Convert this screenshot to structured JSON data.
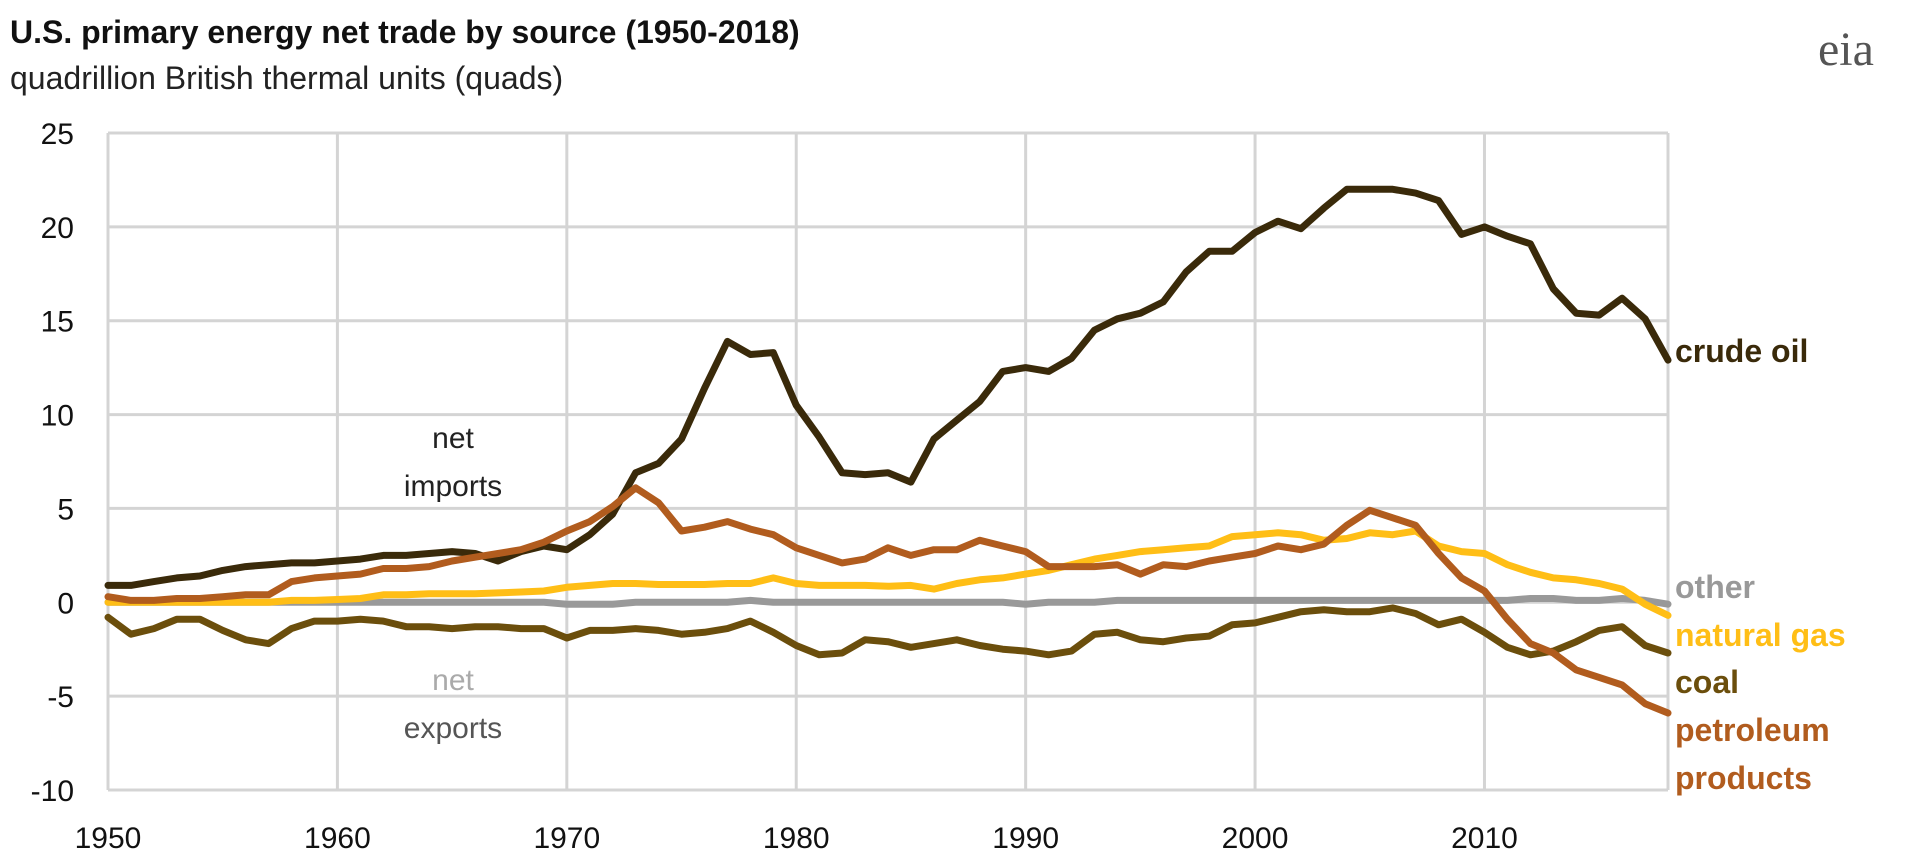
{
  "chart_data": {
    "type": "line",
    "title": "U.S. primary energy net trade by source (1950-2018)",
    "subtitle": "quadrillion British thermal units (quads)",
    "logo": "eia",
    "xlabel": "",
    "ylabel": "quadrillion British thermal units (quads)",
    "xlim": [
      1950,
      2018
    ],
    "ylim": [
      -10,
      25
    ],
    "x_ticks": [
      "1950",
      "1960",
      "1970",
      "1980",
      "1990",
      "2000",
      "2010"
    ],
    "y_ticks": [
      "25",
      "20",
      "15",
      "10",
      "5",
      "0",
      "-5",
      "-10"
    ],
    "grid": true,
    "annotations": {
      "net_imports": [
        "net",
        "imports"
      ],
      "net_exports": [
        "net",
        "exports"
      ]
    },
    "x_start": 1950,
    "series": [
      {
        "name": "crude oil",
        "color": "#3a2a0a",
        "values": [
          0.9,
          0.9,
          1.1,
          1.3,
          1.4,
          1.7,
          1.9,
          2.0,
          2.1,
          2.1,
          2.2,
          2.3,
          2.5,
          2.5,
          2.6,
          2.7,
          2.6,
          2.2,
          2.7,
          3.0,
          2.8,
          3.6,
          4.7,
          6.9,
          7.4,
          8.7,
          11.4,
          13.9,
          13.2,
          13.3,
          10.5,
          8.8,
          6.9,
          6.8,
          6.9,
          6.4,
          8.7,
          9.7,
          10.7,
          12.3,
          12.5,
          12.3,
          13.0,
          14.5,
          15.1,
          15.4,
          16.0,
          17.6,
          18.7,
          18.7,
          19.7,
          20.3,
          19.9,
          21.0,
          22.0,
          22.0,
          22.0,
          21.8,
          21.4,
          19.6,
          20.0,
          19.5,
          19.1,
          16.7,
          15.4,
          15.3,
          16.2,
          15.1,
          12.9
        ]
      },
      {
        "name": "other",
        "color": "#999999",
        "values": [
          0.0,
          0.0,
          0.0,
          0.0,
          0.0,
          0.0,
          0.0,
          0.0,
          0.0,
          0.0,
          0.0,
          0.0,
          0.0,
          0.0,
          0.0,
          0.0,
          0.0,
          0.0,
          0.0,
          0.0,
          -0.1,
          -0.1,
          -0.1,
          0.0,
          0.0,
          0.0,
          0.0,
          0.0,
          0.1,
          0.0,
          0.0,
          0.0,
          0.0,
          0.0,
          0.0,
          0.0,
          0.0,
          0.0,
          0.0,
          0.0,
          -0.1,
          0.0,
          0.0,
          0.0,
          0.1,
          0.1,
          0.1,
          0.1,
          0.1,
          0.1,
          0.1,
          0.1,
          0.1,
          0.1,
          0.1,
          0.1,
          0.1,
          0.1,
          0.1,
          0.1,
          0.1,
          0.1,
          0.2,
          0.2,
          0.1,
          0.1,
          0.2,
          0.1,
          -0.1
        ]
      },
      {
        "name": "natural gas",
        "color": "#ffbe16",
        "values": [
          0.0,
          0.0,
          0.0,
          0.0,
          0.0,
          0.0,
          0.0,
          0.0,
          0.1,
          0.1,
          0.15,
          0.2,
          0.4,
          0.4,
          0.45,
          0.45,
          0.45,
          0.5,
          0.55,
          0.6,
          0.8,
          0.9,
          1.0,
          1.0,
          0.95,
          0.95,
          0.95,
          1.0,
          1.0,
          1.3,
          1.0,
          0.9,
          0.9,
          0.9,
          0.85,
          0.9,
          0.7,
          1.0,
          1.2,
          1.3,
          1.5,
          1.7,
          2.0,
          2.3,
          2.5,
          2.7,
          2.8,
          2.9,
          3.0,
          3.5,
          3.6,
          3.7,
          3.6,
          3.3,
          3.4,
          3.7,
          3.6,
          3.8,
          3.0,
          2.7,
          2.6,
          2.0,
          1.6,
          1.3,
          1.2,
          1.0,
          0.7,
          -0.1,
          -0.7
        ]
      },
      {
        "name": "coal",
        "color": "#6b4e0c",
        "values": [
          -0.8,
          -1.7,
          -1.4,
          -0.9,
          -0.9,
          -1.5,
          -2.0,
          -2.2,
          -1.4,
          -1.0,
          -1.0,
          -0.9,
          -1.0,
          -1.3,
          -1.3,
          -1.4,
          -1.3,
          -1.3,
          -1.4,
          -1.4,
          -1.9,
          -1.5,
          -1.5,
          -1.4,
          -1.5,
          -1.7,
          -1.6,
          -1.4,
          -1.0,
          -1.6,
          -2.3,
          -2.8,
          -2.7,
          -2.0,
          -2.1,
          -2.4,
          -2.2,
          -2.0,
          -2.3,
          -2.5,
          -2.6,
          -2.8,
          -2.6,
          -1.7,
          -1.6,
          -2.0,
          -2.1,
          -1.9,
          -1.8,
          -1.2,
          -1.1,
          -0.8,
          -0.5,
          -0.4,
          -0.5,
          -0.5,
          -0.3,
          -0.6,
          -1.2,
          -0.9,
          -1.6,
          -2.4,
          -2.8,
          -2.6,
          -2.1,
          -1.5,
          -1.3,
          -2.3,
          -2.7
        ]
      },
      {
        "name": "petroleum products",
        "color": "#b15c1e",
        "values": [
          0.3,
          0.1,
          0.1,
          0.2,
          0.2,
          0.3,
          0.4,
          0.4,
          1.1,
          1.3,
          1.4,
          1.5,
          1.8,
          1.8,
          1.9,
          2.2,
          2.4,
          2.6,
          2.8,
          3.2,
          3.8,
          4.3,
          5.1,
          6.1,
          5.3,
          3.8,
          4.0,
          4.3,
          3.9,
          3.6,
          2.9,
          2.5,
          2.1,
          2.3,
          2.9,
          2.5,
          2.8,
          2.8,
          3.3,
          3.0,
          2.7,
          1.9,
          1.9,
          1.9,
          2.0,
          1.5,
          2.0,
          1.9,
          2.2,
          2.4,
          2.6,
          3.0,
          2.8,
          3.1,
          4.1,
          4.9,
          4.5,
          4.1,
          2.6,
          1.3,
          0.6,
          -0.9,
          -2.2,
          -2.7,
          -3.6,
          -4.0,
          -4.4,
          -5.4,
          -5.9
        ]
      }
    ],
    "end_labels": {
      "crude oil": [
        "crude oil"
      ],
      "other": [
        "other"
      ],
      "natural gas": [
        "natural gas"
      ],
      "coal": [
        "coal"
      ],
      "petroleum products": [
        "petroleum",
        "products"
      ]
    }
  }
}
